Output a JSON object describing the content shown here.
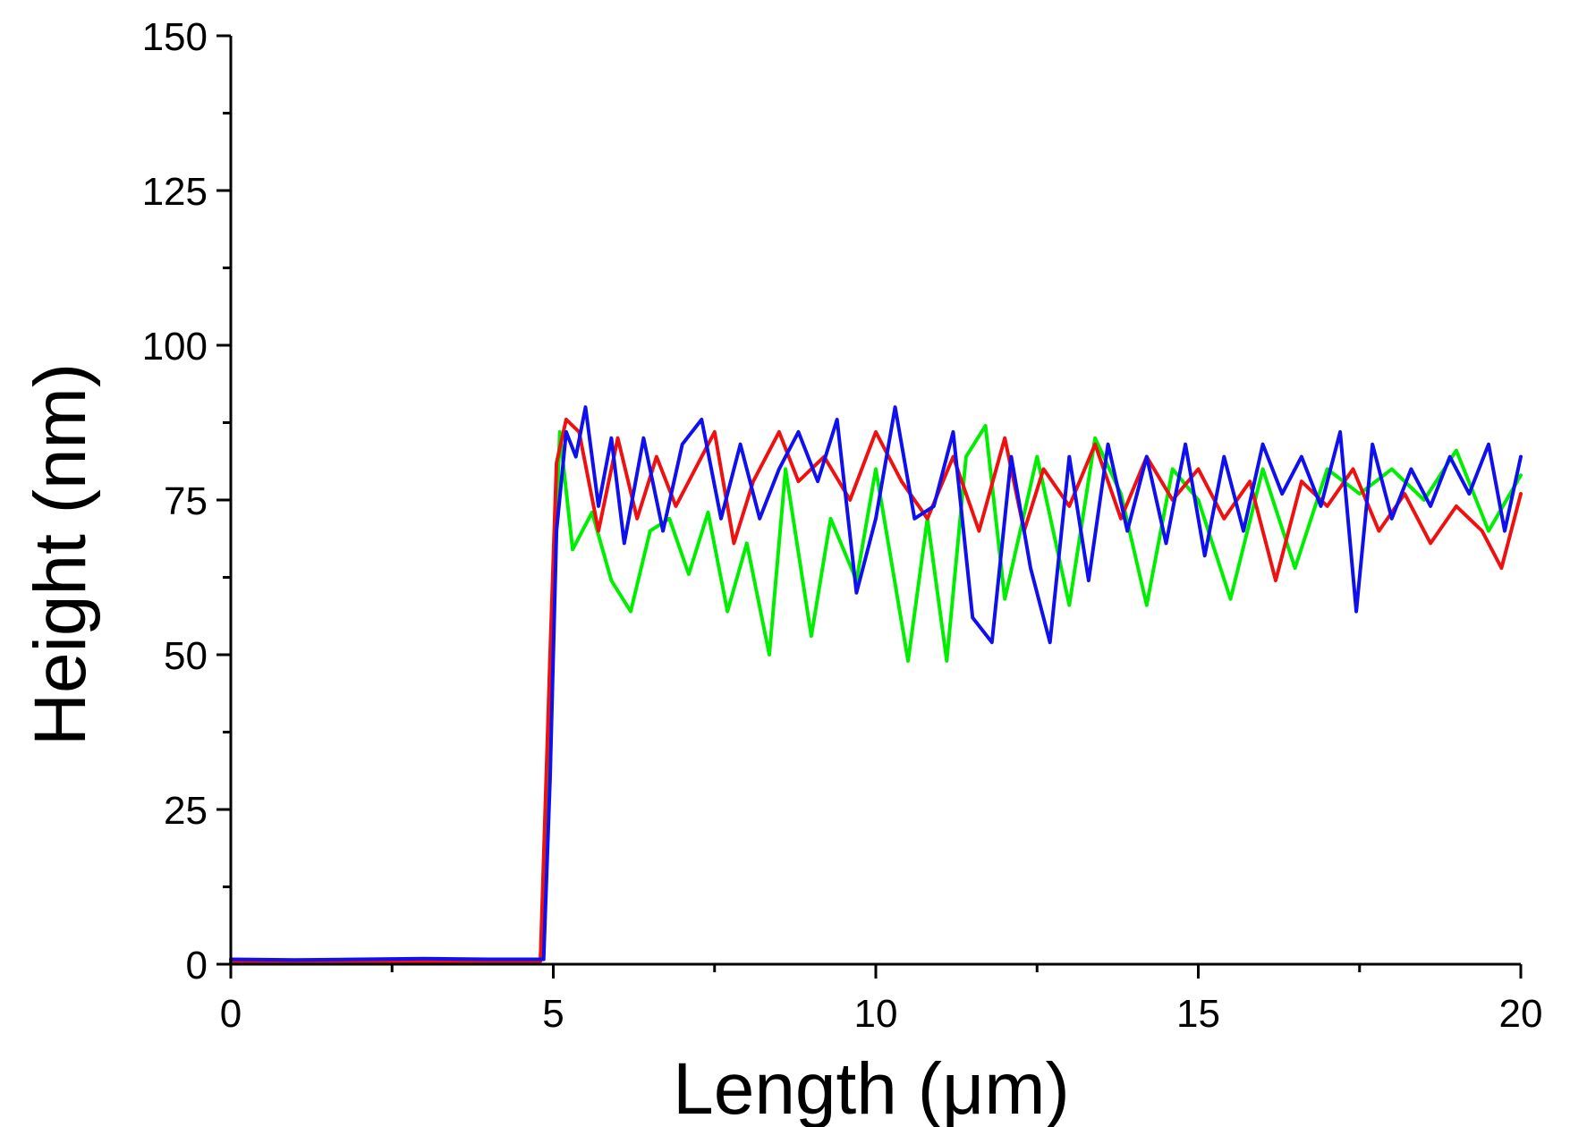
{
  "chart_data": {
    "type": "line",
    "xlabel": "Length (μm)",
    "ylabel": "Height (nm)",
    "xlim": [
      0,
      20
    ],
    "ylim": [
      0,
      150
    ],
    "xticks": [
      0,
      5,
      10,
      15,
      20
    ],
    "yticks": [
      0,
      25,
      50,
      75,
      100,
      125,
      150
    ],
    "grid": false,
    "legend": "none",
    "series": [
      {
        "color": "#00ee00",
        "x": [
          0,
          1,
          2,
          3,
          4,
          4.8,
          4.95,
          5.1,
          5.3,
          5.6,
          5.9,
          6.2,
          6.5,
          6.8,
          7.1,
          7.4,
          7.7,
          8.0,
          8.35,
          8.6,
          9.0,
          9.3,
          9.7,
          10.0,
          10.5,
          10.8,
          11.1,
          11.4,
          11.7,
          12.0,
          12.5,
          13.0,
          13.4,
          13.8,
          14.2,
          14.6,
          15.0,
          15.5,
          16.0,
          16.5,
          17.0,
          17.5,
          18.0,
          18.5,
          19.0,
          19.5,
          20.0
        ],
        "y": [
          0.5,
          0.5,
          0.5,
          0.6,
          0.6,
          0.6,
          40,
          86,
          67,
          73,
          62,
          57,
          70,
          72,
          63,
          73,
          57,
          68,
          50,
          80,
          53,
          72,
          62,
          80,
          49,
          72,
          49,
          82,
          87,
          59,
          82,
          58,
          85,
          76,
          58,
          80,
          75,
          59,
          80,
          64,
          80,
          76,
          80,
          75,
          83,
          70,
          79
        ]
      },
      {
        "color": "#ee1111",
        "x": [
          0,
          1,
          2,
          3,
          4,
          4.8,
          4.95,
          5.05,
          5.2,
          5.4,
          5.7,
          6.0,
          6.3,
          6.6,
          6.9,
          7.2,
          7.5,
          7.8,
          8.1,
          8.5,
          8.8,
          9.2,
          9.6,
          10.0,
          10.4,
          10.8,
          11.2,
          11.6,
          12.0,
          12.3,
          12.6,
          13.0,
          13.4,
          13.8,
          14.2,
          14.6,
          15.0,
          15.4,
          15.8,
          16.2,
          16.6,
          17.0,
          17.4,
          17.8,
          18.2,
          18.6,
          19.0,
          19.4,
          19.7,
          20.0
        ],
        "y": [
          0.3,
          0.3,
          0.4,
          0.4,
          0.4,
          0.5,
          50,
          81,
          88,
          86,
          70,
          85,
          72,
          82,
          74,
          80,
          86,
          68,
          78,
          86,
          78,
          82,
          75,
          86,
          78,
          72,
          82,
          70,
          85,
          70,
          80,
          74,
          84,
          72,
          82,
          75,
          80,
          72,
          78,
          62,
          78,
          74,
          80,
          70,
          76,
          68,
          74,
          70,
          64,
          76
        ]
      },
      {
        "color": "#1010ee",
        "x": [
          0,
          1,
          2,
          3,
          4,
          4.85,
          4.95,
          5.05,
          5.2,
          5.35,
          5.5,
          5.7,
          5.9,
          6.1,
          6.4,
          6.7,
          7.0,
          7.3,
          7.6,
          7.9,
          8.2,
          8.5,
          8.8,
          9.1,
          9.4,
          9.7,
          10.0,
          10.3,
          10.6,
          10.9,
          11.2,
          11.5,
          11.8,
          12.1,
          12.4,
          12.7,
          13.0,
          13.3,
          13.6,
          13.9,
          14.2,
          14.5,
          14.8,
          15.1,
          15.4,
          15.7,
          16.0,
          16.3,
          16.6,
          16.9,
          17.2,
          17.45,
          17.7,
          18.0,
          18.3,
          18.6,
          18.9,
          19.2,
          19.5,
          19.75,
          20.0
        ],
        "y": [
          0.8,
          0.7,
          0.8,
          0.9,
          0.8,
          0.8,
          30,
          70,
          86,
          82,
          90,
          74,
          85,
          68,
          85,
          70,
          84,
          88,
          72,
          84,
          72,
          80,
          86,
          78,
          88,
          60,
          72,
          90,
          72,
          74,
          86,
          56,
          52,
          82,
          64,
          52,
          82,
          62,
          84,
          70,
          82,
          68,
          84,
          66,
          82,
          70,
          84,
          76,
          82,
          74,
          86,
          57,
          84,
          72,
          80,
          74,
          82,
          76,
          84,
          70,
          82
        ]
      }
    ]
  }
}
